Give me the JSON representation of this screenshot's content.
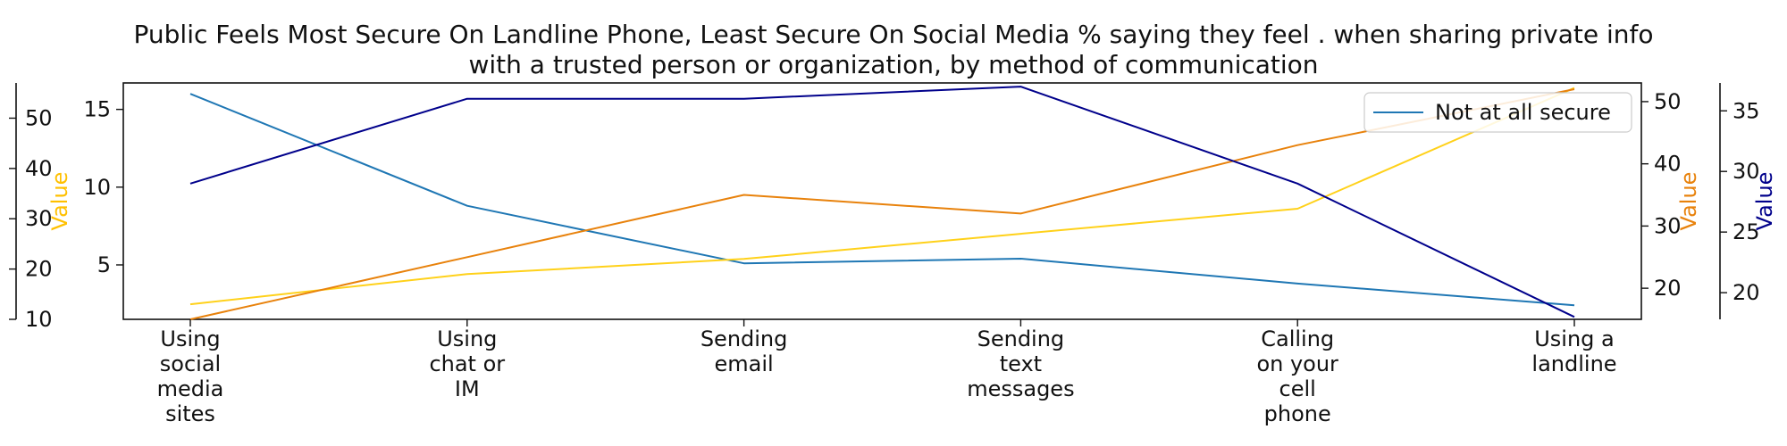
{
  "chart_data": {
    "type": "line",
    "title_lines": [
      "Public Feels Most Secure On Landline Phone, Least Secure On Social Media % saying they feel . when sharing private info",
      "with a trusted person or organization, by method of communication"
    ],
    "categories": [
      [
        "Using",
        "social",
        "media",
        "sites"
      ],
      [
        "Using",
        "chat or",
        "IM"
      ],
      [
        "Sending",
        "email"
      ],
      [
        "Sending",
        "text",
        "messages"
      ],
      [
        "Calling",
        "on your",
        "cell",
        "phone"
      ],
      [
        "Using a",
        "landline"
      ]
    ],
    "series": [
      {
        "name": "Not at all secure",
        "values": [
          16,
          8.8,
          5.1,
          5.4,
          3.8,
          2.4
        ],
        "color": "#1f77b4",
        "axis": "main"
      },
      {
        "values": [
          13,
          19,
          22,
          27,
          32,
          56
        ],
        "color": "#ffd11a",
        "axis": "left-outer"
      },
      {
        "values": [
          15,
          25,
          35,
          32,
          43,
          52
        ],
        "color": "#e8820c",
        "axis": "right-inner"
      },
      {
        "values": [
          29,
          36,
          36,
          37,
          29,
          18
        ],
        "color": "#00008b",
        "axis": "right-outer"
      }
    ],
    "axes": {
      "main": {
        "range": [
          1.5,
          16.7
        ],
        "ticks": [
          5,
          10,
          15
        ]
      },
      "left-outer": {
        "range": [
          10,
          57
        ],
        "ticks": [
          10,
          20,
          30,
          40,
          50
        ],
        "label": "Value",
        "label_color": "#ffc000"
      },
      "right-inner": {
        "range": [
          15,
          53
        ],
        "ticks": [
          20,
          30,
          40,
          50
        ],
        "label": "Value",
        "label_color": "#e8820c"
      },
      "right-outer": {
        "range": [
          17.8,
          37.3
        ],
        "ticks": [
          20,
          25,
          30,
          35
        ],
        "label": "Value",
        "label_color": "#00008b"
      }
    },
    "legend": {
      "position": "top-right"
    }
  }
}
